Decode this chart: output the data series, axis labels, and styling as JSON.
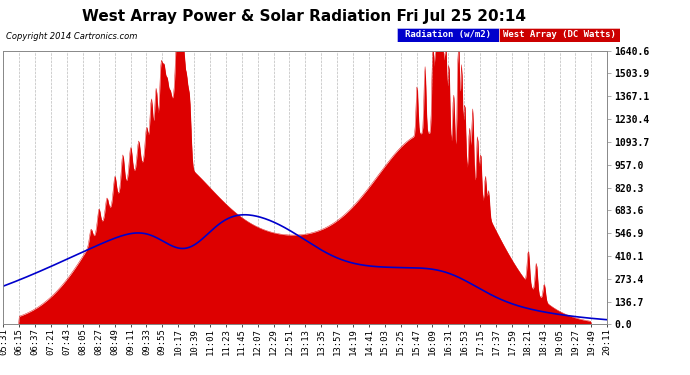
{
  "title": "West Array Power & Solar Radiation Fri Jul 25 20:14",
  "copyright": "Copyright 2014 Cartronics.com",
  "legend_radiation": "Radiation (w/m2)",
  "legend_west": "West Array (DC Watts)",
  "ylabel_values": [
    0.0,
    136.7,
    273.4,
    410.1,
    546.9,
    683.6,
    820.3,
    957.0,
    1093.7,
    1230.4,
    1367.1,
    1503.9,
    1640.6
  ],
  "ymax": 1640.6,
  "ymin": 0.0,
  "background_color": "#ffffff",
  "plot_bg_color": "#ffffff",
  "grid_color": "#aaaaaa",
  "red_color": "#dd0000",
  "blue_color": "#0000cc",
  "title_fontsize": 11,
  "tick_fontsize": 6.5,
  "x_labels": [
    "05:31",
    "06:15",
    "06:37",
    "07:21",
    "07:43",
    "08:05",
    "08:27",
    "08:49",
    "09:11",
    "09:33",
    "09:55",
    "10:17",
    "10:39",
    "11:01",
    "11:23",
    "11:45",
    "12:07",
    "12:29",
    "12:51",
    "13:13",
    "13:35",
    "13:57",
    "14:19",
    "14:41",
    "15:03",
    "15:25",
    "15:47",
    "16:09",
    "16:31",
    "16:53",
    "17:15",
    "17:37",
    "17:59",
    "18:21",
    "18:43",
    "19:05",
    "19:27",
    "19:49",
    "20:11"
  ]
}
